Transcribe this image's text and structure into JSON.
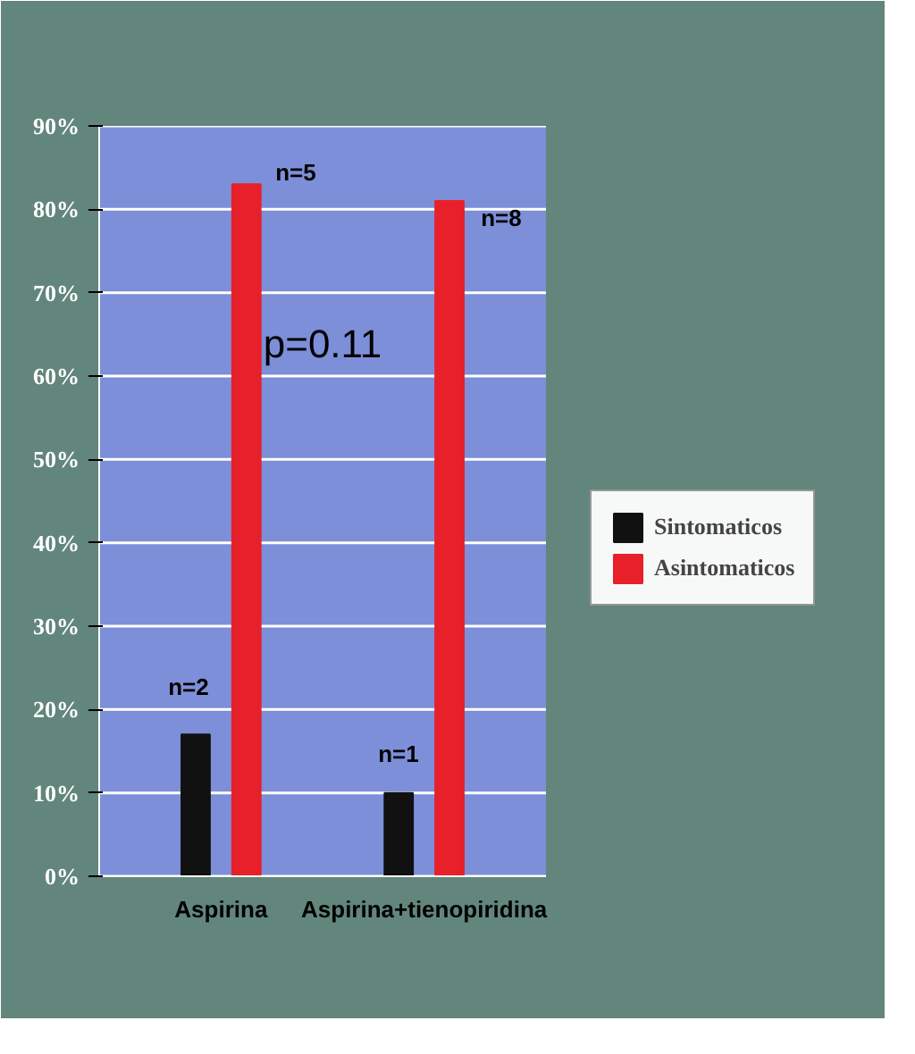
{
  "chart_data": {
    "type": "bar",
    "categories": [
      "Aspirina",
      "Aspirina+tienopiridina"
    ],
    "series": [
      {
        "name": "Sintomaticos",
        "color": "#111111",
        "values": [
          17,
          10
        ]
      },
      {
        "name": "Asintomaticos",
        "color": "#e8202a",
        "values": [
          83,
          81
        ]
      }
    ],
    "ylim": [
      0,
      90
    ],
    "yticks": [
      {
        "value": 0,
        "label": "0%"
      },
      {
        "value": 10,
        "label": "10%"
      },
      {
        "value": 20,
        "label": "20%"
      },
      {
        "value": 30,
        "label": "30%"
      },
      {
        "value": 40,
        "label": "40%"
      },
      {
        "value": 50,
        "label": "50%"
      },
      {
        "value": 60,
        "label": "60%"
      },
      {
        "value": 70,
        "label": "70%"
      },
      {
        "value": 80,
        "label": "80%"
      },
      {
        "value": 90,
        "label": "90%"
      }
    ],
    "grid": "y",
    "legend": "right",
    "annotations": [
      "n=2",
      "n=5",
      "n=1",
      "n=8",
      "p=0.11"
    ]
  }
}
